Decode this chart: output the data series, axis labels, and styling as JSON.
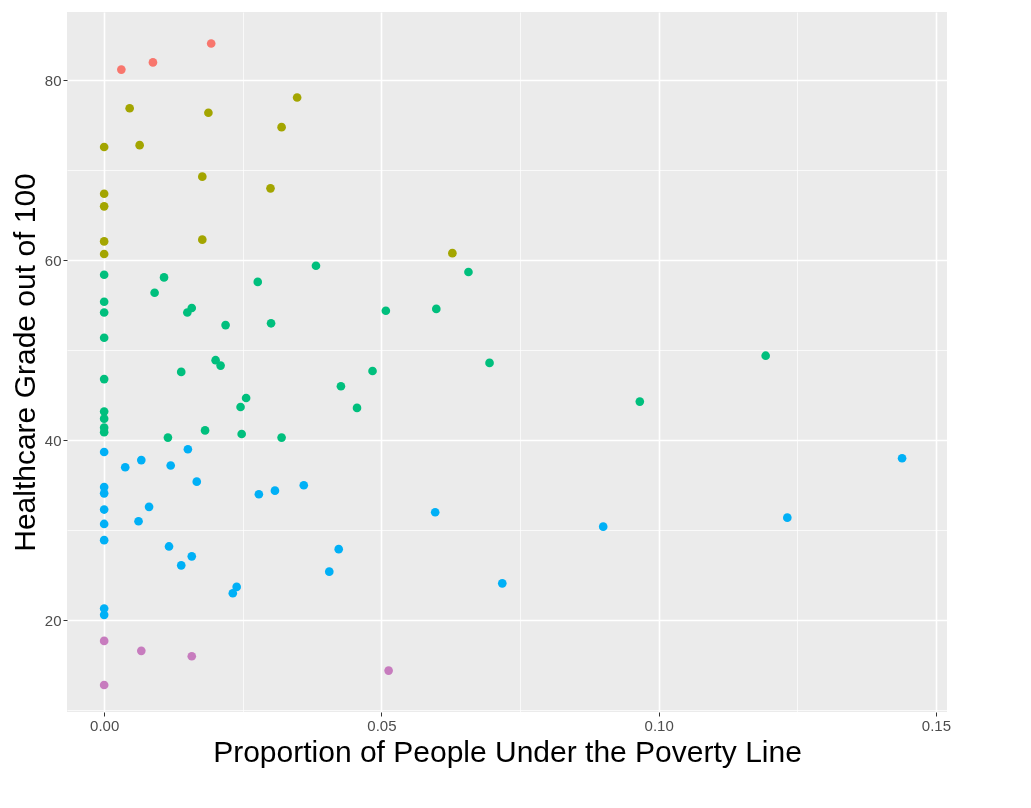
{
  "chart_data": {
    "type": "scatter",
    "xlabel": "Proportion of People Under the Poverty Line",
    "ylabel": "Healthcare Grade out of 100",
    "xlim": [
      -0.0067,
      0.152
    ],
    "ylim": [
      9.8,
      87.6
    ],
    "xticks": [
      {
        "value": 0,
        "label": "0.00"
      },
      {
        "value": 0.025,
        "label": null
      },
      {
        "value": 0.05,
        "label": "0.05"
      },
      {
        "value": 0.075,
        "label": null
      },
      {
        "value": 0.1,
        "label": "0.10"
      },
      {
        "value": 0.125,
        "label": null
      },
      {
        "value": 0.15,
        "label": "0.15"
      }
    ],
    "yticks": [
      {
        "value": 10,
        "label": null
      },
      20,
      {
        "value": 30,
        "label": null
      },
      40,
      {
        "value": 50,
        "label": null
      },
      60,
      {
        "value": 70,
        "label": null
      },
      80
    ],
    "grid": true,
    "legend": false,
    "marker": "circle",
    "series": [
      {
        "color": "#f8766d",
        "x": [
          0.0031,
          0.0088,
          0.0193
        ],
        "values": [
          81.2,
          82.0,
          84.1
        ]
      },
      {
        "color": "#a3a500",
        "x": [
          0.0046,
          0.0188,
          0.0348,
          0.032,
          0,
          0.0064,
          0.0177,
          0.03,
          0,
          0,
          0,
          0.0177,
          0,
          0.0628
        ],
        "values": [
          76.9,
          76.4,
          78.1,
          74.8,
          72.6,
          72.8,
          69.3,
          68.0,
          67.4,
          66.0,
          62.1,
          62.3,
          60.7,
          60.8
        ]
      },
      {
        "color": "#00bf7d",
        "x": [
          0,
          0.0108,
          0.0091,
          0.0382,
          0.0657,
          0.0277,
          0,
          0,
          0.0158,
          0.015,
          0.0301,
          0.0219,
          0.0508,
          0.0599,
          0,
          0.0201,
          0.021,
          0.0695,
          0.1193,
          0.0139,
          0.0484,
          0,
          0.0427,
          0.0256,
          0.0246,
          0.0456,
          0.0966,
          0,
          0,
          0,
          0,
          0.0182,
          0.0248,
          0.0115,
          0.032
        ],
        "values": [
          58.4,
          58.1,
          56.4,
          59.4,
          58.7,
          57.6,
          55.4,
          54.2,
          54.7,
          54.2,
          53.0,
          52.8,
          54.4,
          54.6,
          51.4,
          48.9,
          48.3,
          48.6,
          49.4,
          47.6,
          47.7,
          46.8,
          46.0,
          44.7,
          43.7,
          43.6,
          44.3,
          43.2,
          42.4,
          41.4,
          40.9,
          41.1,
          40.7,
          40.3,
          40.3
        ]
      },
      {
        "color": "#00b0f6",
        "x": [
          0,
          0.0151,
          0.0067,
          0.0038,
          0.012,
          0.1439,
          0.0167,
          0.036,
          0,
          0,
          0.0308,
          0.0279,
          0.0081,
          0,
          0.0597,
          0.1232,
          0.0062,
          0,
          0.09,
          0,
          0.0117,
          0.0423,
          0.0158,
          0.0139,
          0.0406,
          0.0718,
          0.0239,
          0.0232,
          0,
          0
        ],
        "values": [
          38.7,
          39.0,
          37.8,
          37.0,
          37.2,
          38.0,
          35.4,
          35.0,
          34.8,
          34.1,
          34.4,
          34.0,
          32.6,
          32.3,
          32.0,
          31.4,
          31.0,
          30.7,
          30.4,
          28.9,
          28.2,
          27.9,
          27.1,
          26.1,
          25.4,
          24.1,
          23.7,
          23.0,
          21.3,
          20.6
        ]
      },
      {
        "color": "#c77cbe",
        "x": [
          0,
          0.0067,
          0.0158,
          0.0513,
          0
        ],
        "values": [
          17.7,
          16.6,
          16.0,
          14.4,
          12.8
        ]
      }
    ]
  }
}
